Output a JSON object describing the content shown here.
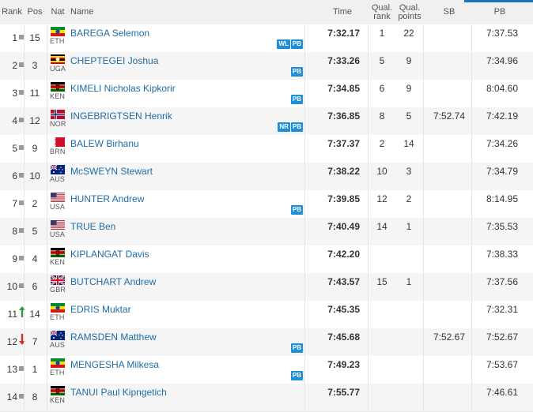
{
  "headers": {
    "rank": "Rank",
    "pos": "Pos",
    "nat": "Nat",
    "name": "Name",
    "time": "Time",
    "qual_rank_1": "Qual.",
    "qual_rank_2": "rank",
    "qual_points_1": "Qual.",
    "qual_points_2": "points",
    "sb": "SB",
    "pb": "PB"
  },
  "colors": {
    "accent": "#1e73be",
    "name_link": "#1e6ca8",
    "badge": "#1e8fd6",
    "rank_up": "#2e9a3e",
    "rank_down": "#d0312d"
  },
  "rows": [
    {
      "rank": "1",
      "indicator": "square",
      "pos": "15",
      "nat": "ETH",
      "flag": "ETH",
      "name": "BAREGA Selemon",
      "badges": [
        "WL",
        "PB"
      ],
      "time": "7:32.17",
      "qual_rank": "1",
      "qual_points": "22",
      "sb": "",
      "pb": "7:37.53"
    },
    {
      "rank": "2",
      "indicator": "square",
      "pos": "3",
      "nat": "UGA",
      "flag": "UGA",
      "name": "CHEPTEGEI Joshua",
      "badges": [
        "PB"
      ],
      "time": "7:33.26",
      "qual_rank": "5",
      "qual_points": "9",
      "sb": "",
      "pb": "7:34.96"
    },
    {
      "rank": "3",
      "indicator": "square",
      "pos": "11",
      "nat": "KEN",
      "flag": "KEN",
      "name": "KIMELI Nicholas Kipkorir",
      "badges": [
        "PB"
      ],
      "time": "7:34.85",
      "qual_rank": "6",
      "qual_points": "9",
      "sb": "",
      "pb": "8:04.60"
    },
    {
      "rank": "4",
      "indicator": "square",
      "pos": "12",
      "nat": "NOR",
      "flag": "NOR",
      "name": "INGEBRIGTSEN Henrik",
      "badges": [
        "NR",
        "PB"
      ],
      "time": "7:36.85",
      "qual_rank": "8",
      "qual_points": "5",
      "sb": "7:52.74",
      "pb": "7:42.19"
    },
    {
      "rank": "5",
      "indicator": "square",
      "pos": "9",
      "nat": "BRN",
      "flag": "BRN",
      "name": "BALEW Birhanu",
      "badges": [],
      "time": "7:37.37",
      "qual_rank": "2",
      "qual_points": "14",
      "sb": "",
      "pb": "7:34.26"
    },
    {
      "rank": "6",
      "indicator": "square",
      "pos": "10",
      "nat": "AUS",
      "flag": "AUS",
      "name": "McSWEYN Stewart",
      "badges": [],
      "time": "7:38.22",
      "qual_rank": "10",
      "qual_points": "3",
      "sb": "",
      "pb": "7:34.79"
    },
    {
      "rank": "7",
      "indicator": "square",
      "pos": "2",
      "nat": "USA",
      "flag": "USA",
      "name": "HUNTER Andrew",
      "badges": [
        "PB"
      ],
      "time": "7:39.85",
      "qual_rank": "12",
      "qual_points": "2",
      "sb": "",
      "pb": "8:14.95"
    },
    {
      "rank": "8",
      "indicator": "square",
      "pos": "5",
      "nat": "USA",
      "flag": "USA",
      "name": "TRUE Ben",
      "badges": [],
      "time": "7:40.49",
      "qual_rank": "14",
      "qual_points": "1",
      "sb": "",
      "pb": "7:35.53"
    },
    {
      "rank": "9",
      "indicator": "square",
      "pos": "4",
      "nat": "KEN",
      "flag": "KEN",
      "name": "KIPLANGAT Davis",
      "badges": [],
      "time": "7:42.20",
      "qual_rank": "",
      "qual_points": "",
      "sb": "",
      "pb": "7:38.33"
    },
    {
      "rank": "10",
      "indicator": "square",
      "pos": "6",
      "nat": "GBR",
      "flag": "GBR",
      "name": "BUTCHART Andrew",
      "badges": [],
      "time": "7:43.57",
      "qual_rank": "15",
      "qual_points": "1",
      "sb": "",
      "pb": "7:37.56"
    },
    {
      "rank": "11",
      "indicator": "up",
      "pos": "14",
      "nat": "ETH",
      "flag": "ETH",
      "name": "EDRIS Muktar",
      "badges": [],
      "time": "7:45.35",
      "qual_rank": "",
      "qual_points": "",
      "sb": "",
      "pb": "7:32.31"
    },
    {
      "rank": "12",
      "indicator": "down",
      "pos": "7",
      "nat": "AUS",
      "flag": "AUS",
      "name": "RAMSDEN Matthew",
      "badges": [
        "PB"
      ],
      "time": "7:45.68",
      "qual_rank": "",
      "qual_points": "",
      "sb": "7:52.67",
      "pb": "7:52.67"
    },
    {
      "rank": "13",
      "indicator": "square",
      "pos": "1",
      "nat": "ETH",
      "flag": "ETH",
      "name": "MENGESHA Milkesa",
      "badges": [
        "PB"
      ],
      "time": "7:49.23",
      "qual_rank": "",
      "qual_points": "",
      "sb": "",
      "pb": "7:53.67"
    },
    {
      "rank": "14",
      "indicator": "square",
      "pos": "8",
      "nat": "KEN",
      "flag": "KEN",
      "name": "TANUI Paul Kipngetich",
      "badges": [],
      "time": "7:55.77",
      "qual_rank": "",
      "qual_points": "",
      "sb": "",
      "pb": "7:46.61"
    }
  ]
}
